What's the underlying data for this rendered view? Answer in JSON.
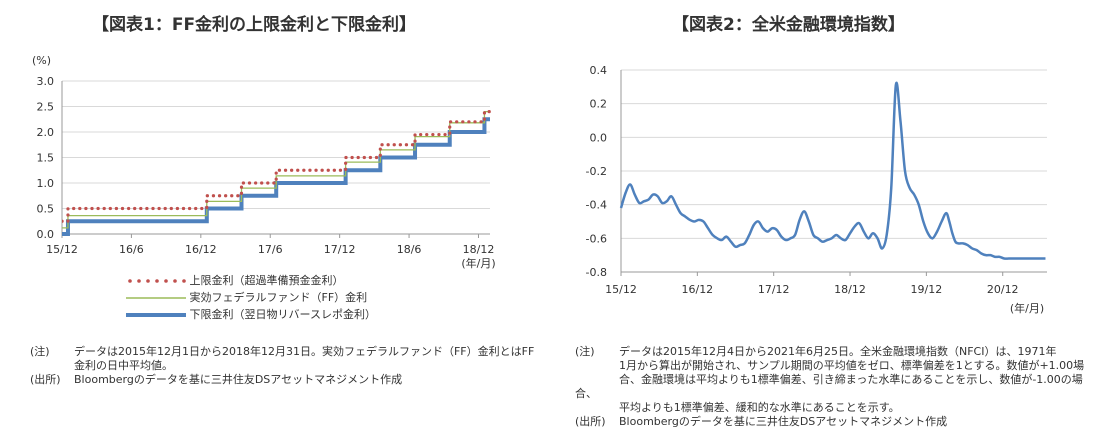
{
  "chart1": {
    "title": "【図表1：FF金利の上限金利と下限金利】",
    "unit": "(%)",
    "x_unit": "(年/月)",
    "notes": [
      {
        "label": "(注)",
        "lines": [
          "データは2015年12月1日から2018年12月31日。実効フェデラルファンド（FF）金利とはFF",
          "金利の日中平均値。"
        ]
      },
      {
        "label": "(出所)",
        "lines": [
          "Bloombergのデータを基に三井住友DSアセットマネジメント作成"
        ]
      }
    ]
  },
  "chart2": {
    "title": "【図表2：全米金融環境指数】",
    "x_unit": "(年/月)",
    "notes": [
      {
        "label": "(注)",
        "lines": [
          "データは2015年12月4日から2021年6月25日。全米金融環境指数（NFCI）は、1971年",
          "1月から算出が開始され、サンプル期間の平均値をゼロ、標準偏差を1とする。数値が+1.00場",
          "合、金融環境は平均よりも1標準偏差、引き締まった水準にあることを示し、数値が-1.00の場合、",
          "平均よりも1標準偏差、緩和的な水準にあることを示す。"
        ]
      },
      {
        "label": "(出所)",
        "lines": [
          "Bloombergのデータを基に三井住友DSアセットマネジメント作成"
        ]
      }
    ]
  },
  "chart_data": [
    {
      "type": "line",
      "title": "【図表1：FF金利の上限金利と下限金利】",
      "ylabel": "(%)",
      "xlabel": "(年/月)",
      "ylim": [
        0,
        3.0
      ],
      "yticks": [
        "0.0",
        "0.5",
        "1.0",
        "1.5",
        "2.0",
        "2.5",
        "3.0"
      ],
      "xticks": [
        "15/12",
        "16/6",
        "16/12",
        "17/6",
        "17/12",
        "18/6",
        "18/12"
      ],
      "xrange_months": [
        2015.917,
        2019.0
      ],
      "series": [
        {
          "name": "上限金利（超過準備預金金利）",
          "style": "dotted",
          "color": "#c0504d",
          "steps": [
            [
              2015.917,
              0.25
            ],
            [
              2015.96,
              0.5
            ],
            [
              2016.96,
              0.75
            ],
            [
              2017.21,
              1.0
            ],
            [
              2017.46,
              1.25
            ],
            [
              2017.96,
              1.5
            ],
            [
              2018.21,
              1.75
            ],
            [
              2018.46,
              1.95
            ],
            [
              2018.71,
              2.2
            ],
            [
              2018.96,
              2.4
            ]
          ]
        },
        {
          "name": "実効フェデラルファンド（FF）金利",
          "style": "thin",
          "color": "#9bbb59",
          "steps": [
            [
              2015.917,
              0.12
            ],
            [
              2015.96,
              0.36
            ],
            [
              2016.96,
              0.64
            ],
            [
              2017.21,
              0.9
            ],
            [
              2017.46,
              1.14
            ],
            [
              2017.96,
              1.41
            ],
            [
              2018.21,
              1.65
            ],
            [
              2018.46,
              1.91
            ],
            [
              2018.71,
              2.18
            ],
            [
              2018.96,
              2.4
            ]
          ]
        },
        {
          "name": "下限金利（翌日物リバースレポ金利）",
          "style": "thick",
          "color": "#4f81bd",
          "steps": [
            [
              2015.917,
              0.0
            ],
            [
              2015.96,
              0.25
            ],
            [
              2016.96,
              0.5
            ],
            [
              2017.21,
              0.75
            ],
            [
              2017.46,
              1.0
            ],
            [
              2017.96,
              1.25
            ],
            [
              2018.21,
              1.5
            ],
            [
              2018.46,
              1.75
            ],
            [
              2018.71,
              2.0
            ],
            [
              2018.96,
              2.25
            ]
          ]
        }
      ]
    },
    {
      "type": "line",
      "title": "【図表2：全米金融環境指数】",
      "xlabel": "(年/月)",
      "ylim": [
        -0.8,
        0.4
      ],
      "yticks": [
        "0.4",
        "0.2",
        "0.0",
        "-0.2",
        "-0.4",
        "-0.6",
        "-0.8"
      ],
      "xticks": [
        "15/12",
        "16/12",
        "17/12",
        "18/12",
        "19/12",
        "20/12"
      ],
      "series": [
        {
          "name": "NFCI",
          "color": "#4f81bd",
          "x": [
            2015.92,
            2015.98,
            2016.04,
            2016.1,
            2016.16,
            2016.22,
            2016.28,
            2016.34,
            2016.4,
            2016.46,
            2016.52,
            2016.58,
            2016.64,
            2016.7,
            2016.76,
            2016.82,
            2016.88,
            2016.94,
            2017.0,
            2017.06,
            2017.12,
            2017.18,
            2017.24,
            2017.3,
            2017.36,
            2017.42,
            2017.48,
            2017.54,
            2017.6,
            2017.66,
            2017.72,
            2017.78,
            2017.84,
            2017.9,
            2017.96,
            2018.02,
            2018.08,
            2018.14,
            2018.2,
            2018.26,
            2018.32,
            2018.38,
            2018.44,
            2018.5,
            2018.56,
            2018.62,
            2018.68,
            2018.74,
            2018.8,
            2018.86,
            2018.92,
            2018.98,
            2019.04,
            2019.1,
            2019.16,
            2019.22,
            2019.28,
            2019.34,
            2019.4,
            2019.46,
            2019.52,
            2019.58,
            2019.64,
            2019.7,
            2019.76,
            2019.82,
            2019.88,
            2019.94,
            2020.0,
            2020.06,
            2020.12,
            2020.18,
            2020.22,
            2020.26,
            2020.3,
            2020.34,
            2020.4,
            2020.46,
            2020.52,
            2020.58,
            2020.64,
            2020.7,
            2020.76,
            2020.82,
            2020.88,
            2020.94,
            2021.0,
            2021.06,
            2021.12,
            2021.18,
            2021.24,
            2021.3,
            2021.36,
            2021.42,
            2021.48
          ],
          "y": [
            -0.42,
            -0.33,
            -0.28,
            -0.34,
            -0.39,
            -0.38,
            -0.37,
            -0.34,
            -0.35,
            -0.39,
            -0.38,
            -0.35,
            -0.4,
            -0.45,
            -0.47,
            -0.49,
            -0.5,
            -0.49,
            -0.5,
            -0.54,
            -0.58,
            -0.6,
            -0.61,
            -0.59,
            -0.62,
            -0.65,
            -0.64,
            -0.63,
            -0.58,
            -0.52,
            -0.5,
            -0.54,
            -0.56,
            -0.54,
            -0.55,
            -0.59,
            -0.61,
            -0.6,
            -0.58,
            -0.49,
            -0.44,
            -0.5,
            -0.58,
            -0.6,
            -0.62,
            -0.61,
            -0.6,
            -0.58,
            -0.6,
            -0.61,
            -0.57,
            -0.53,
            -0.51,
            -0.56,
            -0.6,
            -0.57,
            -0.6,
            -0.66,
            -0.58,
            -0.3,
            0.31,
            0.1,
            -0.2,
            -0.3,
            -0.34,
            -0.4,
            -0.5,
            -0.57,
            -0.6,
            -0.56,
            -0.5,
            -0.45,
            -0.5,
            -0.57,
            -0.62,
            -0.63,
            -0.63,
            -0.64,
            -0.66,
            -0.67,
            -0.69,
            -0.7,
            -0.7,
            -0.71,
            -0.71,
            -0.72,
            -0.72,
            -0.72,
            -0.72,
            -0.72,
            -0.72,
            -0.72,
            -0.72,
            -0.72,
            -0.72
          ]
        }
      ]
    }
  ]
}
